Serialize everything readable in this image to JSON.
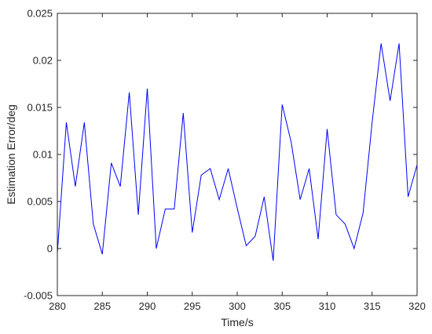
{
  "chart_data": {
    "type": "line",
    "title": "",
    "xlabel": "Time/s",
    "ylabel": "Estimation Error/deg",
    "xlim": [
      280,
      320
    ],
    "ylim": [
      -0.005,
      0.025
    ],
    "grid": false,
    "legend": "none",
    "x_ticks": [
      "280",
      "285",
      "290",
      "295",
      "300",
      "305",
      "310",
      "315",
      "320"
    ],
    "y_ticks": [
      "-0.005",
      "0",
      "0.005",
      "0.01",
      "0.015",
      "0.02",
      "0.025"
    ],
    "series": [
      {
        "color": "#0000ff",
        "x": [
          280,
          281,
          282,
          283,
          284,
          285,
          286,
          287,
          288,
          289,
          290,
          291,
          292,
          293,
          294,
          295,
          296,
          297,
          298,
          299,
          300,
          301,
          302,
          303,
          304,
          305,
          306,
          307,
          308,
          309,
          310,
          311,
          312,
          313,
          314,
          315,
          316,
          317,
          318,
          319,
          320
        ],
        "values": [
          -0.0005,
          0.0134,
          0.0066,
          0.0134,
          0.0026,
          -0.0006,
          0.0091,
          0.0066,
          0.0166,
          0.0036,
          0.017,
          0.0,
          0.0042,
          0.0042,
          0.0144,
          0.0017,
          0.0078,
          0.0085,
          0.0052,
          0.0085,
          0.0043,
          0.0003,
          0.0013,
          0.0055,
          -0.0013,
          0.0153,
          0.0113,
          0.0052,
          0.0085,
          0.001,
          0.0127,
          0.0036,
          0.0026,
          0.0,
          0.0038,
          0.0134,
          0.0218,
          0.0157,
          0.0218,
          0.0055,
          0.0089
        ]
      }
    ]
  }
}
